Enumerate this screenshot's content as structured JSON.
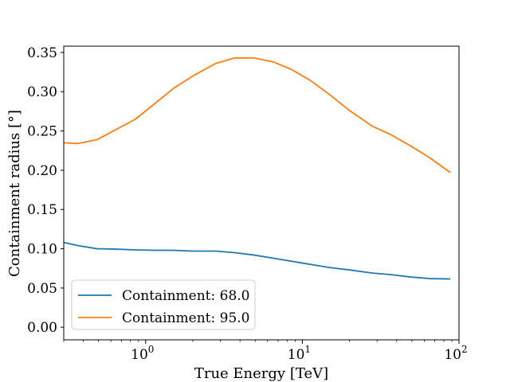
{
  "chart_data": {
    "type": "line",
    "title": "",
    "xlabel": "True Energy [TeV]",
    "ylabel": "Containment radius [°]",
    "xscale": "log",
    "xlim": [
      0.3,
      100
    ],
    "ylim": [
      -0.016,
      0.358
    ],
    "x_ticks": [
      1,
      10,
      100
    ],
    "x_tick_labels": [
      {
        "base": "10",
        "exp": "0"
      },
      {
        "base": "10",
        "exp": "1"
      },
      {
        "base": "10",
        "exp": "2"
      }
    ],
    "y_ticks": [
      0.0,
      0.05,
      0.1,
      0.15,
      0.2,
      0.25,
      0.3,
      0.35
    ],
    "y_tick_labels": [
      "0.00",
      "0.05",
      "0.10",
      "0.15",
      "0.20",
      "0.25",
      "0.30",
      "0.35"
    ],
    "grid": false,
    "legend_position": "lower-left",
    "series": [
      {
        "name": "Containment: 68.0",
        "color": "#1f77b4",
        "x": [
          0.3,
          0.37,
          0.49,
          0.65,
          0.86,
          1.13,
          1.5,
          2.0,
          2.8,
          3.7,
          4.9,
          6.5,
          8.6,
          11.3,
          15,
          20,
          28,
          37,
          49,
          65,
          88
        ],
        "y": [
          0.108,
          0.104,
          0.1,
          0.0995,
          0.0985,
          0.098,
          0.098,
          0.097,
          0.097,
          0.095,
          0.092,
          0.088,
          0.084,
          0.08,
          0.076,
          0.073,
          0.069,
          0.067,
          0.064,
          0.062,
          0.0615
        ]
      },
      {
        "name": "Containment: 95.0",
        "color": "#ff7f0e",
        "x": [
          0.3,
          0.37,
          0.49,
          0.65,
          0.86,
          1.13,
          1.5,
          2.0,
          2.8,
          3.7,
          4.9,
          6.5,
          8.6,
          11.3,
          15,
          20,
          28,
          37,
          49,
          65,
          88
        ],
        "y": [
          0.235,
          0.234,
          0.239,
          0.252,
          0.265,
          0.284,
          0.304,
          0.32,
          0.336,
          0.343,
          0.343,
          0.338,
          0.328,
          0.314,
          0.296,
          0.276,
          0.256,
          0.245,
          0.231,
          0.216,
          0.197
        ]
      }
    ]
  }
}
